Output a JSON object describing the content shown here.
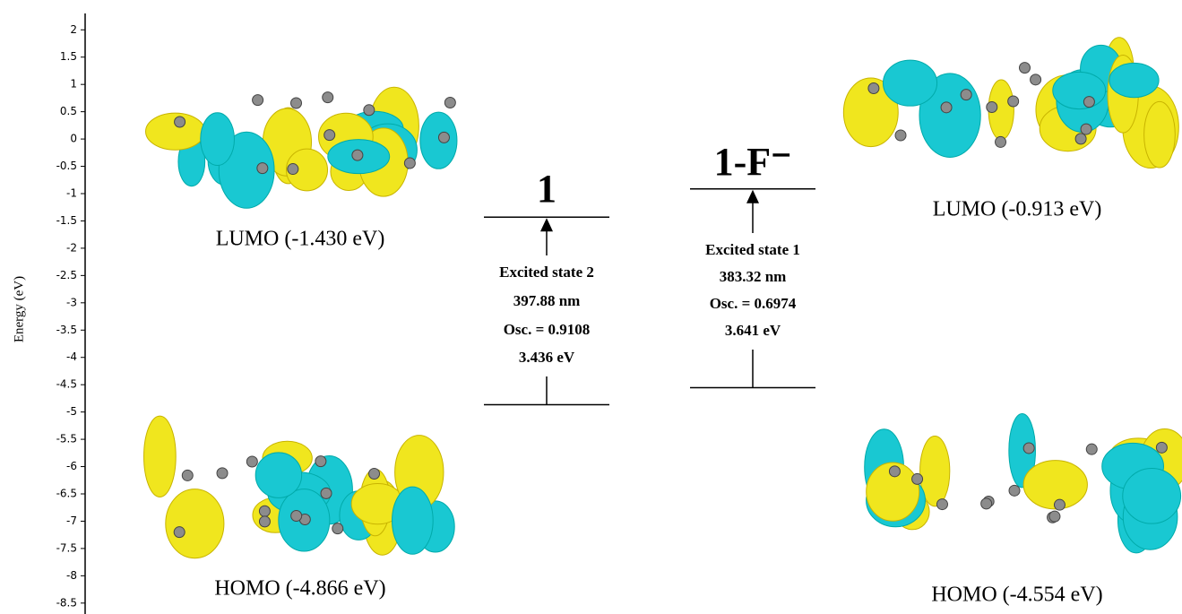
{
  "chart_data": {
    "type": "energy-level",
    "y_label": "Energy (eV)",
    "ylim": [
      -8.7,
      2.3
    ],
    "yticks": [
      2,
      1.5,
      1,
      0.5,
      0,
      -0.5,
      -1,
      -1.5,
      -2,
      -2.5,
      -3,
      -3.5,
      -4,
      -4.5,
      -5,
      -5.5,
      -6,
      -6.5,
      -7,
      -7.5,
      -8,
      -8.5
    ],
    "color": "#000000",
    "series": [
      {
        "name": "1",
        "values": [
          -4.866,
          -1.43
        ],
        "value_labels": [
          "HOMO (-4.866 eV)",
          "LUMO (-1.430 eV)"
        ],
        "transition": [
          "Excited state 2",
          "397.88 nm",
          "Osc. = 0.9108",
          "3.436 eV"
        ]
      },
      {
        "name": "1-F⁻",
        "values": [
          -4.554,
          -0.913
        ],
        "value_labels": [
          "HOMO (-4.554 eV)",
          "LUMO (-0.913 eV)"
        ],
        "transition": [
          "Excited state 1",
          "383.32 nm",
          "Osc. = 0.6974",
          "3.641 eV"
        ]
      }
    ]
  }
}
